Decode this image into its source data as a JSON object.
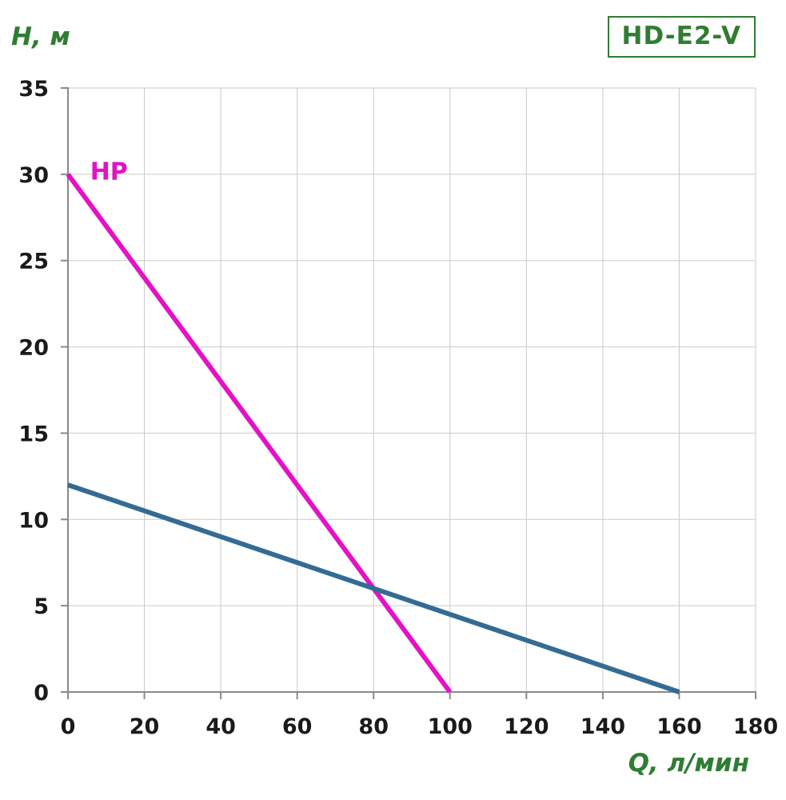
{
  "badge": {
    "model": "HD-E2-V"
  },
  "chart_data": {
    "type": "line",
    "title": "",
    "xlabel": "Q, л/мин",
    "ylabel": "H, м",
    "xlim": [
      0,
      180
    ],
    "ylim": [
      0,
      35
    ],
    "xticks": [
      0,
      20,
      40,
      60,
      80,
      100,
      120,
      140,
      160,
      180
    ],
    "yticks": [
      0,
      5,
      10,
      15,
      20,
      25,
      30,
      35
    ],
    "grid": true,
    "legend_position": "none",
    "series": [
      {
        "name": "hp-curve",
        "label": "HP",
        "label_pos": {
          "x": 5.8,
          "y": 29.7
        },
        "color": "#e312c6",
        "points": [
          [
            0,
            30
          ],
          [
            100,
            0
          ]
        ]
      },
      {
        "name": "second-curve",
        "label": "",
        "color": "#336b94",
        "points": [
          [
            0,
            12
          ],
          [
            160,
            0
          ]
        ]
      }
    ]
  },
  "colors": {
    "accent_green": "#2f7d33",
    "grid": "#c9c9c9",
    "axis": "#8a8a8a",
    "tick_text": "#1a1a1a",
    "background": "#ffffff"
  }
}
